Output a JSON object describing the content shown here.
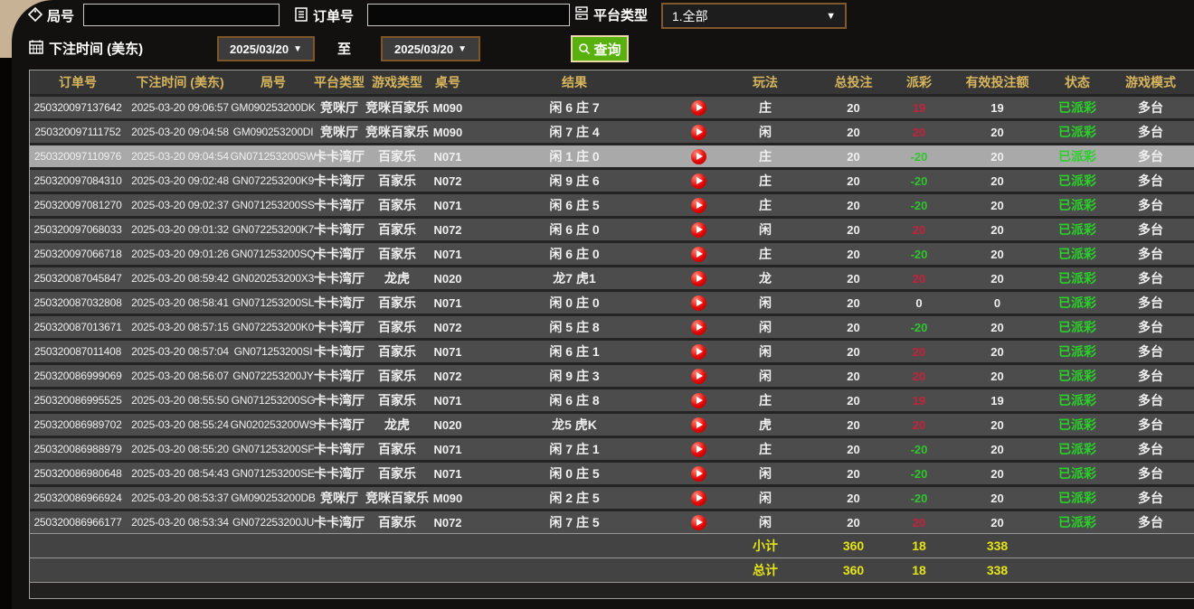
{
  "filters": {
    "round_label": "局号",
    "order_label": "订单号",
    "platform_label": "平台类型",
    "platform_value": "1.全部",
    "round_value": "",
    "order_value": "",
    "bet_time_label": "下注时间 (美东)",
    "date_from": "2025/03/20",
    "to_label": "至",
    "date_to": "2025/03/20",
    "query_label": "查询"
  },
  "icons": {
    "round": "tag-icon",
    "order": "list-icon",
    "platform": "server-list-icon",
    "bet_time": "calendar-icon",
    "query": "search-icon",
    "replay": "play-icon",
    "dropdown": "chevron-down-icon"
  },
  "colors": {
    "payout_win": "#c6213a",
    "payout_loss": "#2ec52e",
    "status_paid": "#29d129",
    "totals": "#e5e415",
    "header_text": "#d6b55e",
    "query_button": "#58b10d",
    "selected_row": "#a9a9a9"
  },
  "table": {
    "headers": [
      "订单号",
      "下注时间 (美东)",
      "局号",
      "平台类型",
      "游戏类型",
      "桌号",
      "结果",
      "",
      "玩法",
      "总投注",
      "派彩",
      "有效投注额",
      "状态",
      "游戏模式"
    ],
    "rows": [
      {
        "order": "250320097137642",
        "time": "2025-03-20 09:06:57",
        "round": "GM090253200DK",
        "platform": "竞咪厅",
        "game": "竞咪百家乐",
        "table": "M090",
        "result": "闲 6 庄 7",
        "bet": "庄",
        "total": "20",
        "payout": "19",
        "valid": "19",
        "status": "已派彩",
        "mode": "多台",
        "selected": false
      },
      {
        "order": "250320097111752",
        "time": "2025-03-20 09:04:58",
        "round": "GM090253200DI",
        "platform": "竞咪厅",
        "game": "竞咪百家乐",
        "table": "M090",
        "result": "闲 7 庄 4",
        "bet": "闲",
        "total": "20",
        "payout": "20",
        "valid": "20",
        "status": "已派彩",
        "mode": "多台",
        "selected": false
      },
      {
        "order": "250320097110976",
        "time": "2025-03-20 09:04:54",
        "round": "GN071253200SW",
        "platform": "卡卡湾厅",
        "game": "百家乐",
        "table": "N071",
        "result": "闲 1 庄 0",
        "bet": "庄",
        "total": "20",
        "payout": "-20",
        "valid": "20",
        "status": "已派彩",
        "mode": "多台",
        "selected": true
      },
      {
        "order": "250320097084310",
        "time": "2025-03-20 09:02:48",
        "round": "GN072253200K9",
        "platform": "卡卡湾厅",
        "game": "百家乐",
        "table": "N072",
        "result": "闲 9 庄 6",
        "bet": "庄",
        "total": "20",
        "payout": "-20",
        "valid": "20",
        "status": "已派彩",
        "mode": "多台",
        "selected": false
      },
      {
        "order": "250320097081270",
        "time": "2025-03-20 09:02:37",
        "round": "GN071253200SS",
        "platform": "卡卡湾厅",
        "game": "百家乐",
        "table": "N071",
        "result": "闲 6 庄 5",
        "bet": "庄",
        "total": "20",
        "payout": "-20",
        "valid": "20",
        "status": "已派彩",
        "mode": "多台",
        "selected": false
      },
      {
        "order": "250320097068033",
        "time": "2025-03-20 09:01:32",
        "round": "GN072253200K7",
        "platform": "卡卡湾厅",
        "game": "百家乐",
        "table": "N072",
        "result": "闲 6 庄 0",
        "bet": "闲",
        "total": "20",
        "payout": "20",
        "valid": "20",
        "status": "已派彩",
        "mode": "多台",
        "selected": false
      },
      {
        "order": "250320097066718",
        "time": "2025-03-20 09:01:26",
        "round": "GN071253200SQ",
        "platform": "卡卡湾厅",
        "game": "百家乐",
        "table": "N071",
        "result": "闲 6 庄 0",
        "bet": "庄",
        "total": "20",
        "payout": "-20",
        "valid": "20",
        "status": "已派彩",
        "mode": "多台",
        "selected": false
      },
      {
        "order": "250320087045847",
        "time": "2025-03-20 08:59:42",
        "round": "GN020253200X3",
        "platform": "卡卡湾厅",
        "game": "龙虎",
        "table": "N020",
        "result": "龙7 虎1",
        "bet": "龙",
        "total": "20",
        "payout": "20",
        "valid": "20",
        "status": "已派彩",
        "mode": "多台",
        "selected": false
      },
      {
        "order": "250320087032808",
        "time": "2025-03-20 08:58:41",
        "round": "GN071253200SL",
        "platform": "卡卡湾厅",
        "game": "百家乐",
        "table": "N071",
        "result": "闲 0 庄 0",
        "bet": "闲",
        "total": "20",
        "payout": "0",
        "valid": "0",
        "status": "已派彩",
        "mode": "多台",
        "selected": false
      },
      {
        "order": "250320087013671",
        "time": "2025-03-20 08:57:15",
        "round": "GN072253200K0",
        "platform": "卡卡湾厅",
        "game": "百家乐",
        "table": "N072",
        "result": "闲 5 庄 8",
        "bet": "闲",
        "total": "20",
        "payout": "-20",
        "valid": "20",
        "status": "已派彩",
        "mode": "多台",
        "selected": false
      },
      {
        "order": "250320087011408",
        "time": "2025-03-20 08:57:04",
        "round": "GN071253200SI",
        "platform": "卡卡湾厅",
        "game": "百家乐",
        "table": "N071",
        "result": "闲 6 庄 1",
        "bet": "闲",
        "total": "20",
        "payout": "20",
        "valid": "20",
        "status": "已派彩",
        "mode": "多台",
        "selected": false
      },
      {
        "order": "250320086999069",
        "time": "2025-03-20 08:56:07",
        "round": "GN072253200JY",
        "platform": "卡卡湾厅",
        "game": "百家乐",
        "table": "N072",
        "result": "闲 9 庄 3",
        "bet": "闲",
        "total": "20",
        "payout": "20",
        "valid": "20",
        "status": "已派彩",
        "mode": "多台",
        "selected": false
      },
      {
        "order": "250320086995525",
        "time": "2025-03-20 08:55:50",
        "round": "GN071253200SG",
        "platform": "卡卡湾厅",
        "game": "百家乐",
        "table": "N071",
        "result": "闲 6 庄 8",
        "bet": "庄",
        "total": "20",
        "payout": "19",
        "valid": "19",
        "status": "已派彩",
        "mode": "多台",
        "selected": false
      },
      {
        "order": "250320086989702",
        "time": "2025-03-20 08:55:24",
        "round": "GN020253200WS",
        "platform": "卡卡湾厅",
        "game": "龙虎",
        "table": "N020",
        "result": "龙5 虎K",
        "bet": "虎",
        "total": "20",
        "payout": "20",
        "valid": "20",
        "status": "已派彩",
        "mode": "多台",
        "selected": false
      },
      {
        "order": "250320086988979",
        "time": "2025-03-20 08:55:20",
        "round": "GN071253200SF",
        "platform": "卡卡湾厅",
        "game": "百家乐",
        "table": "N071",
        "result": "闲 7 庄 1",
        "bet": "庄",
        "total": "20",
        "payout": "-20",
        "valid": "20",
        "status": "已派彩",
        "mode": "多台",
        "selected": false
      },
      {
        "order": "250320086980648",
        "time": "2025-03-20 08:54:43",
        "round": "GN071253200SE",
        "platform": "卡卡湾厅",
        "game": "百家乐",
        "table": "N071",
        "result": "闲 0 庄 5",
        "bet": "闲",
        "total": "20",
        "payout": "-20",
        "valid": "20",
        "status": "已派彩",
        "mode": "多台",
        "selected": false
      },
      {
        "order": "250320086966924",
        "time": "2025-03-20 08:53:37",
        "round": "GM090253200DB",
        "platform": "竞咪厅",
        "game": "竞咪百家乐",
        "table": "M090",
        "result": "闲 2 庄 5",
        "bet": "闲",
        "total": "20",
        "payout": "-20",
        "valid": "20",
        "status": "已派彩",
        "mode": "多台",
        "selected": false
      },
      {
        "order": "250320086966177",
        "time": "2025-03-20 08:53:34",
        "round": "GN072253200JU",
        "platform": "卡卡湾厅",
        "game": "百家乐",
        "table": "N072",
        "result": "闲 7 庄 5",
        "bet": "闲",
        "total": "20",
        "payout": "20",
        "valid": "20",
        "status": "已派彩",
        "mode": "多台",
        "selected": false
      }
    ],
    "subtotal": {
      "label": "小计",
      "total": "360",
      "payout": "18",
      "valid": "338"
    },
    "grand_total": {
      "label": "总计",
      "total": "360",
      "payout": "18",
      "valid": "338"
    }
  }
}
